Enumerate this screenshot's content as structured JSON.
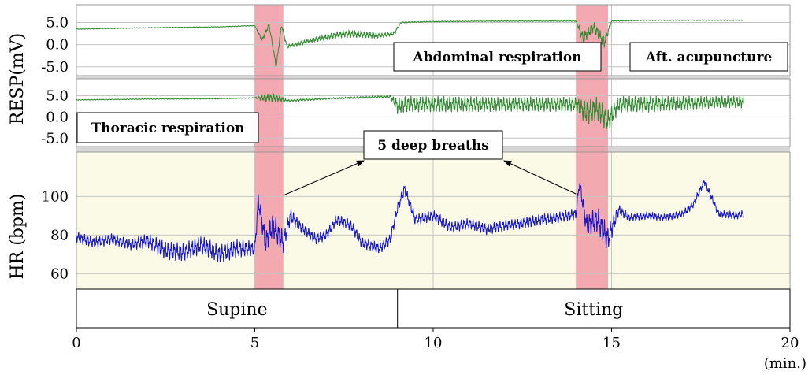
{
  "chart_data": {
    "type": "line",
    "title": "",
    "x_axis": {
      "label": "(min.)",
      "range": [
        0,
        20
      ],
      "ticks": [
        0,
        5,
        10,
        15,
        20
      ],
      "tick_labels": [
        "0",
        "5",
        "10",
        "15",
        "20"
      ]
    },
    "panels": [
      {
        "id": "abdominal",
        "ylabel": "RESP(mV)",
        "yrange": [
          -7,
          9
        ],
        "ticks": [
          -5,
          0,
          5
        ],
        "tick_labels": [
          "-5.0",
          "0.0",
          "5.0"
        ],
        "annotation_boxes": [
          "Abdominal respiration",
          "Aft. acupuncture"
        ],
        "series": [
          {
            "color": "#2e8b2e",
            "x": [
              0,
              2,
              4,
              5,
              5.2,
              5.4,
              5.6,
              5.75,
              5.9,
              6.5,
              7.5,
              8.5,
              8.9,
              9.1,
              10,
              12,
              14,
              14.2,
              14.5,
              14.8,
              15,
              16,
              18,
              18.7
            ],
            "y": [
              3.5,
              3.8,
              4.0,
              4.3,
              1.0,
              4.5,
              -5.0,
              4.5,
              -0.5,
              0.8,
              2.5,
              2.0,
              2.5,
              5.0,
              5.2,
              5.3,
              5.3,
              1.5,
              4.0,
              0.5,
              5.3,
              5.5,
              5.5,
              5.5
            ],
            "ripple": [
              0.08,
              0.08,
              0.08,
              0.08,
              0.5,
              0.5,
              0.5,
              0.5,
              0.5,
              0.5,
              0.9,
              0.6,
              0.5,
              0.15,
              0.1,
              0.1,
              0.1,
              1.5,
              1.2,
              1.5,
              0.1,
              0.1,
              0.1,
              0.1
            ]
          }
        ]
      },
      {
        "id": "thoracic",
        "ylabel": "",
        "yrange": [
          -7,
          9
        ],
        "ticks": [
          -5,
          0,
          5
        ],
        "tick_labels": [
          "-5.0",
          "0.0",
          "5.0"
        ],
        "annotation_boxes": [
          "Thoracic respiration"
        ],
        "series": [
          {
            "color": "#2e8b2e",
            "x": [
              0,
              2,
              4,
              5,
              5.3,
              5.6,
              5.9,
              7,
              8.8,
              9.0,
              9.3,
              10,
              12,
              14,
              14.3,
              14.6,
              14.9,
              15.2,
              16,
              18,
              18.7
            ],
            "y": [
              4.0,
              4.2,
              4.3,
              4.5,
              4.5,
              4.5,
              3.8,
              4.3,
              4.8,
              2.5,
              3.0,
              3.0,
              3.0,
              3.0,
              1.0,
              2.0,
              -1.0,
              3.0,
              3.0,
              3.5,
              3.5
            ],
            "ripple": [
              0.1,
              0.1,
              0.1,
              0.1,
              1.0,
              1.0,
              0.3,
              0.2,
              0.3,
              2.0,
              2.0,
              2.0,
              1.8,
              1.8,
              3.0,
              3.0,
              3.0,
              2.0,
              2.0,
              1.5,
              1.5
            ]
          }
        ]
      },
      {
        "id": "hr",
        "ylabel": "HR (bpm)",
        "yrange": [
          52,
          123
        ],
        "ticks": [
          60,
          80,
          100
        ],
        "tick_labels": [
          "60",
          "80",
          "100"
        ],
        "annotation_boxes": [
          "5 deep breaths"
        ],
        "series": [
          {
            "color": "#1515d0",
            "x": [
              0,
              0.5,
              1,
              1.5,
              2,
              2.5,
              3,
              3.5,
              4,
              4.5,
              5,
              5.1,
              5.3,
              5.5,
              5.8,
              6.0,
              6.3,
              6.7,
              7.0,
              7.3,
              7.7,
              8.0,
              8.5,
              8.8,
              9.0,
              9.2,
              9.5,
              10,
              10.5,
              11,
              11.5,
              12,
              12.5,
              13,
              13.5,
              14,
              14.1,
              14.3,
              14.6,
              14.9,
              15.2,
              15.5,
              16,
              16.5,
              17,
              17.3,
              17.6,
              18,
              18.5,
              18.7
            ],
            "y": [
              79,
              76,
              78,
              75,
              77,
              72,
              71,
              75,
              70,
              73,
              73,
              98,
              76,
              85,
              76,
              90,
              84,
              78,
              80,
              88,
              85,
              76,
              73,
              78,
              94,
              104,
              88,
              90,
              84,
              86,
              83,
              85,
              86,
              88,
              89,
              91,
              107,
              85,
              88,
              78,
              93,
              89,
              90,
              89,
              91,
              96,
              108,
              91,
              90,
              91
            ],
            "ripple": [
              3,
              3,
              3,
              3,
              4,
              5,
              5,
              5,
              5,
              5,
              4,
              5,
              6,
              7,
              6,
              4,
              3,
              3,
              3,
              3,
              3,
              3,
              3,
              3,
              3,
              3,
              3,
              3,
              3,
              3,
              3,
              3,
              3,
              3,
              3,
              3,
              3,
              6,
              7,
              7,
              3,
              2,
              2,
              2,
              2,
              2,
              2,
              2,
              2,
              2
            ]
          }
        ]
      }
    ],
    "highlight_bands": [
      {
        "x_start": 5.0,
        "x_end": 5.8,
        "color": "#f09aa4"
      },
      {
        "x_start": 14.0,
        "x_end": 14.9,
        "color": "#f09aa4"
      }
    ],
    "arrow_targets_min": [
      5.8,
      14.0
    ],
    "posture_segments": [
      {
        "label": "Supine",
        "x_start": 0,
        "x_end": 9
      },
      {
        "label": "Sitting",
        "x_start": 9,
        "x_end": 20
      }
    ],
    "colors": {
      "hr_background": "#fafae6",
      "grid": "#c4c4c4",
      "separator": "#d6d6d6"
    },
    "grid": true
  }
}
